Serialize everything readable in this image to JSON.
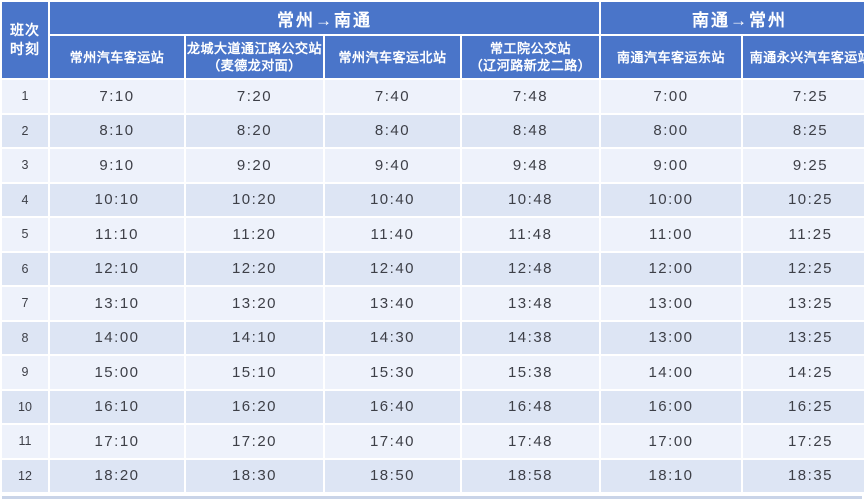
{
  "table": {
    "corner": {
      "line1": "班次",
      "line2": "时刻"
    },
    "directions": [
      {
        "label": "常州→南通",
        "colspan": 4
      },
      {
        "label": "南通→常州",
        "colspan": 2
      }
    ],
    "stations": [
      {
        "line1": "常州汽车客运站",
        "line2": ""
      },
      {
        "line1": "龙城大道通江路公交站",
        "line2": "（麦德龙对面）"
      },
      {
        "line1": "常州汽车客运北站",
        "line2": ""
      },
      {
        "line1": "常工院公交站",
        "line2": "（辽河路新龙二路）"
      },
      {
        "line1": "南通汽车客运东站",
        "line2": ""
      },
      {
        "line1": "南通永兴汽车客运站",
        "line2": ""
      }
    ],
    "rows": [
      {
        "no": "1",
        "times": [
          "7:10",
          "7:20",
          "7:40",
          "7:48",
          "7:00",
          "7:25"
        ]
      },
      {
        "no": "2",
        "times": [
          "8:10",
          "8:20",
          "8:40",
          "8:48",
          "8:00",
          "8:25"
        ]
      },
      {
        "no": "3",
        "times": [
          "9:10",
          "9:20",
          "9:40",
          "9:48",
          "9:00",
          "9:25"
        ]
      },
      {
        "no": "4",
        "times": [
          "10:10",
          "10:20",
          "10:40",
          "10:48",
          "10:00",
          "10:25"
        ]
      },
      {
        "no": "5",
        "times": [
          "11:10",
          "11:20",
          "11:40",
          "11:48",
          "11:00",
          "11:25"
        ]
      },
      {
        "no": "6",
        "times": [
          "12:10",
          "12:20",
          "12:40",
          "12:48",
          "12:00",
          "12:25"
        ]
      },
      {
        "no": "7",
        "times": [
          "13:10",
          "13:20",
          "13:40",
          "13:48",
          "13:00",
          "13:25"
        ]
      },
      {
        "no": "8",
        "times": [
          "14:00",
          "14:10",
          "14:30",
          "14:38",
          "13:00",
          "13:25"
        ]
      },
      {
        "no": "9",
        "times": [
          "15:00",
          "15:10",
          "15:30",
          "15:38",
          "14:00",
          "14:25"
        ]
      },
      {
        "no": "10",
        "times": [
          "16:10",
          "16:20",
          "16:40",
          "16:48",
          "16:00",
          "16:25"
        ]
      },
      {
        "no": "11",
        "times": [
          "17:10",
          "17:20",
          "17:40",
          "17:48",
          "17:00",
          "17:25"
        ]
      },
      {
        "no": "12",
        "times": [
          "18:20",
          "18:30",
          "18:50",
          "18:58",
          "18:10",
          "18:35"
        ]
      }
    ]
  },
  "colors": {
    "accent_blue": "#4a75c9",
    "row_light": "#eef2fb",
    "row_dark": "#dde5f4",
    "text_dark": "#3d3f47",
    "header_text": "#ffffff",
    "bottom_bar": "#c9d4e8"
  }
}
